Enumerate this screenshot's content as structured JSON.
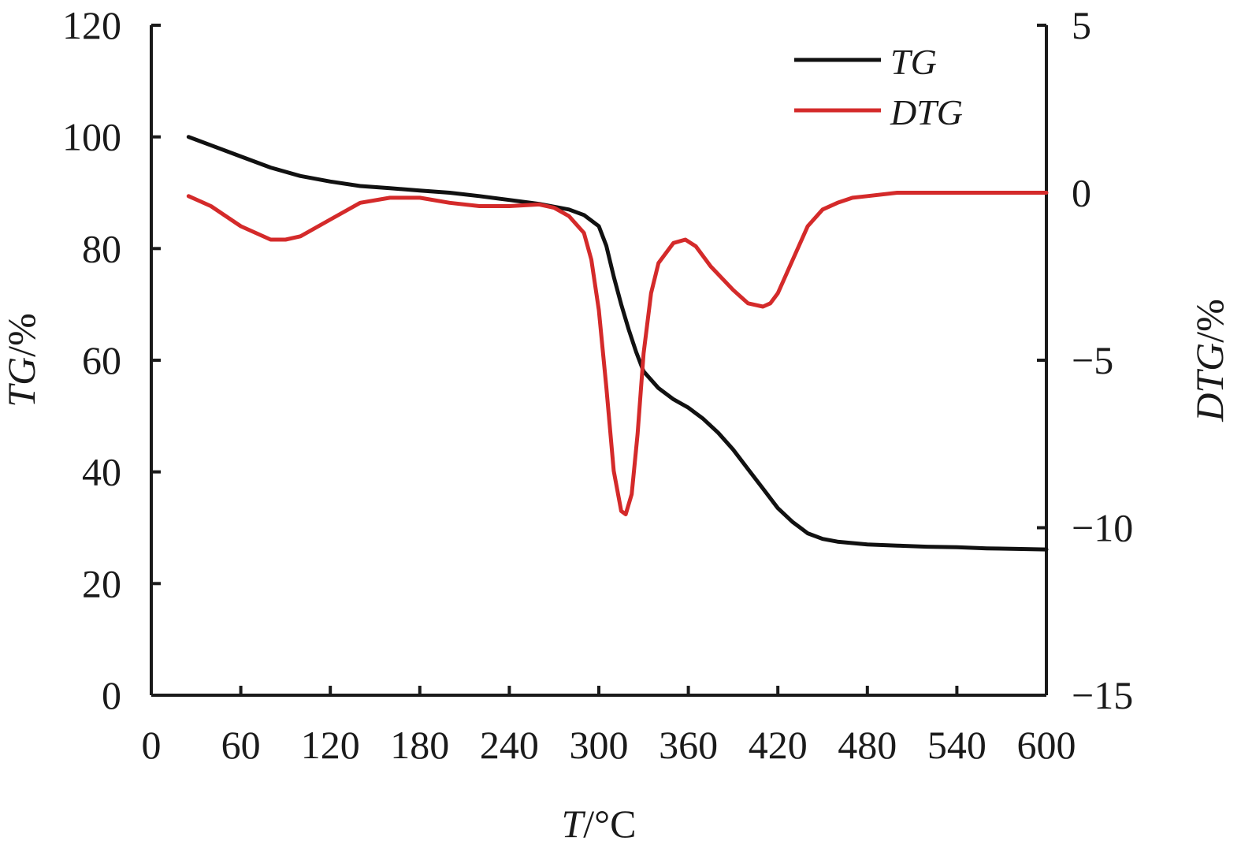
{
  "chart_data": {
    "type": "line",
    "xlabel": {
      "italic": "T",
      "rest": "/°C"
    },
    "ylabel_left": {
      "italic": "TG",
      "rest": "/%"
    },
    "ylabel_right": {
      "italic": "DTG",
      "rest": "/%"
    },
    "xlim": [
      0,
      600
    ],
    "ylim_left": [
      0,
      120
    ],
    "ylim_right": [
      -15,
      5
    ],
    "x_ticks": [
      0,
      60,
      120,
      180,
      240,
      300,
      360,
      420,
      480,
      540,
      600
    ],
    "x_tick_labels": [
      "0",
      "60",
      "120",
      "180",
      "240",
      "300",
      "360",
      "420",
      "480",
      "540",
      "600"
    ],
    "y_left_ticks": [
      0,
      20,
      40,
      60,
      80,
      100,
      120
    ],
    "y_left_tick_labels": [
      "0",
      "20",
      "40",
      "60",
      "80",
      "100",
      "120"
    ],
    "y_right_ticks": [
      -15,
      -10,
      -5,
      0,
      5
    ],
    "y_right_tick_labels": [
      "−15",
      "−10",
      "−5",
      "0",
      "5"
    ],
    "grid": false,
    "legend_position": "top-right",
    "series": [
      {
        "name": "TG",
        "axis": "left",
        "color": "#111111",
        "x": [
          25,
          40,
          60,
          80,
          100,
          120,
          140,
          160,
          180,
          200,
          220,
          240,
          260,
          280,
          290,
          300,
          305,
          310,
          315,
          320,
          325,
          330,
          340,
          350,
          360,
          370,
          380,
          390,
          400,
          410,
          420,
          430,
          440,
          450,
          460,
          480,
          500,
          520,
          540,
          560,
          580,
          600
        ],
        "y": [
          100,
          98.5,
          96.5,
          94.5,
          93,
          92,
          91.2,
          90.8,
          90.4,
          90,
          89.4,
          88.7,
          88,
          87,
          86,
          84,
          80.5,
          75,
          70,
          65.5,
          61.5,
          58,
          55,
          53,
          51.5,
          49.5,
          47,
          44,
          40.5,
          37,
          33.5,
          31,
          29,
          28,
          27.5,
          27,
          26.8,
          26.6,
          26.5,
          26.3,
          26.2,
          26.1
        ]
      },
      {
        "name": "DTG",
        "axis": "right",
        "color": "#d42a2a",
        "x": [
          25,
          40,
          60,
          80,
          90,
          100,
          120,
          140,
          160,
          180,
          200,
          220,
          240,
          260,
          270,
          280,
          290,
          295,
          300,
          305,
          310,
          315,
          318,
          322,
          326,
          330,
          335,
          340,
          350,
          358,
          365,
          375,
          390,
          400,
          410,
          415,
          420,
          430,
          440,
          450,
          460,
          470,
          480,
          500,
          520,
          550,
          600
        ],
        "y": [
          -0.1,
          -0.4,
          -1.0,
          -1.4,
          -1.4,
          -1.3,
          -0.8,
          -0.3,
          -0.15,
          -0.15,
          -0.3,
          -0.4,
          -0.4,
          -0.35,
          -0.45,
          -0.7,
          -1.2,
          -2.0,
          -3.5,
          -5.8,
          -8.3,
          -9.5,
          -9.6,
          -9.0,
          -7.2,
          -4.8,
          -3.0,
          -2.1,
          -1.5,
          -1.4,
          -1.6,
          -2.2,
          -2.9,
          -3.3,
          -3.4,
          -3.3,
          -3.0,
          -2.0,
          -1.0,
          -0.5,
          -0.3,
          -0.15,
          -0.1,
          0,
          0,
          0,
          0
        ]
      }
    ]
  }
}
